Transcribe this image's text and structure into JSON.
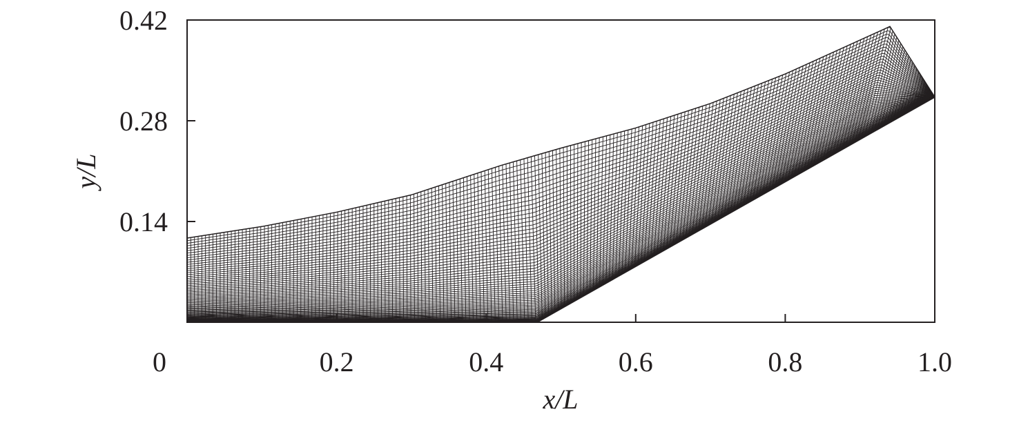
{
  "chart_data": {
    "type": "mesh",
    "xlabel": "x/L",
    "ylabel": "y/L",
    "xlim": [
      0,
      1
    ],
    "ylim": [
      0,
      0.42
    ],
    "xticks": [
      0,
      0.2,
      0.4,
      0.6,
      0.8,
      {
        "value": 1,
        "label": "1.0"
      }
    ],
    "yticks": [
      0.14,
      0.28,
      0.42
    ],
    "color": "#231f20",
    "lower": {
      "x": [
        0,
        0.468,
        1
      ],
      "y": [
        0,
        0,
        0.313
      ]
    },
    "upper": {
      "x": [
        0,
        0.1,
        0.2,
        0.3,
        0.42,
        0.5,
        0.6,
        0.7,
        0.8,
        0.94,
        1
      ],
      "y": [
        0.117,
        0.133,
        0.153,
        0.177,
        0.218,
        0.242,
        0.27,
        0.304,
        0.345,
        0.411,
        0.313
      ]
    }
  }
}
